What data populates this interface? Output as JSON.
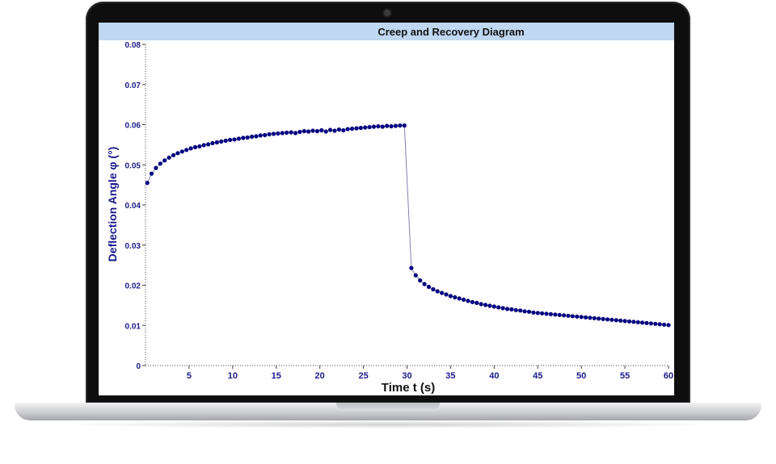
{
  "chart_data": {
    "type": "scatter",
    "title": "Creep and Recovery Diagram",
    "xlabel": "Time t (s)",
    "ylabel": "Deflection Angle φ (°)",
    "xlim": [
      0,
      60
    ],
    "ylim": [
      0,
      0.08
    ],
    "x_ticks": [
      "5",
      "10",
      "15",
      "20",
      "25",
      "30",
      "35",
      "40",
      "45",
      "50",
      "55",
      "60"
    ],
    "y_ticks": [
      "0",
      "0.01",
      "0.02",
      "0.03",
      "0.04",
      "0.05",
      "0.06",
      "0.07",
      "0.08"
    ],
    "series": [
      {
        "color": "#000080",
        "x": [
          0.2,
          0.7,
          1.2,
          1.7,
          2.2,
          2.7,
          3.2,
          3.7,
          4.2,
          4.7,
          5.2,
          5.7,
          6.2,
          6.7,
          7.2,
          7.7,
          8.2,
          8.7,
          9.2,
          9.7,
          10.2,
          10.7,
          11.2,
          11.7,
          12.2,
          12.7,
          13.2,
          13.7,
          14.2,
          14.7,
          15.2,
          15.7,
          16.2,
          16.7,
          17.2,
          17.7,
          18.2,
          18.7,
          19.2,
          19.7,
          20.2,
          20.7,
          21.2,
          21.7,
          22.2,
          22.7,
          23.2,
          23.7,
          24.2,
          24.7,
          25.2,
          25.7,
          26.2,
          26.7,
          27.2,
          27.7,
          28.2,
          28.7,
          29.2,
          29.7,
          30.5,
          31.0,
          31.5,
          32.0,
          32.5,
          33.0,
          33.5,
          34.0,
          34.5,
          35.0,
          35.5,
          36.0,
          36.5,
          37.0,
          37.5,
          38.0,
          38.5,
          39.0,
          39.5,
          40.0,
          40.5,
          41.0,
          41.5,
          42.0,
          42.5,
          43.0,
          43.5,
          44.0,
          44.5,
          45.0,
          45.5,
          46.0,
          46.5,
          47.0,
          47.5,
          48.0,
          48.5,
          49.0,
          49.5,
          50.0,
          50.5,
          51.0,
          51.5,
          52.0,
          52.5,
          53.0,
          53.5,
          54.0,
          54.5,
          55.0,
          55.5,
          56.0,
          56.5,
          57.0,
          57.5,
          58.0,
          58.5,
          59.0,
          59.5,
          60.0
        ],
        "y": [
          0.0455,
          0.0478,
          0.0492,
          0.0503,
          0.0511,
          0.0518,
          0.0524,
          0.0529,
          0.0533,
          0.0537,
          0.0541,
          0.0544,
          0.0546,
          0.0549,
          0.0551,
          0.0554,
          0.0556,
          0.0558,
          0.056,
          0.0562,
          0.0563,
          0.0565,
          0.0567,
          0.0568,
          0.057,
          0.0571,
          0.0573,
          0.0574,
          0.0576,
          0.0577,
          0.0578,
          0.0579,
          0.058,
          0.0581,
          0.0579,
          0.0582,
          0.0584,
          0.0583,
          0.0585,
          0.0584,
          0.0586,
          0.0583,
          0.0587,
          0.0585,
          0.0588,
          0.0586,
          0.0589,
          0.059,
          0.0591,
          0.0592,
          0.0593,
          0.0594,
          0.0595,
          0.0596,
          0.0595,
          0.0597,
          0.0596,
          0.0597,
          0.0598,
          0.0598,
          0.0243,
          0.0225,
          0.0212,
          0.0203,
          0.0196,
          0.019,
          0.0185,
          0.0181,
          0.0177,
          0.0173,
          0.017,
          0.0167,
          0.0164,
          0.0161,
          0.0158,
          0.0156,
          0.0153,
          0.0151,
          0.0149,
          0.0147,
          0.0145,
          0.0143,
          0.0141,
          0.014,
          0.0138,
          0.0137,
          0.0135,
          0.0134,
          0.0132,
          0.0131,
          0.013,
          0.0129,
          0.0128,
          0.0127,
          0.0126,
          0.0125,
          0.0124,
          0.0123,
          0.0122,
          0.0121,
          0.012,
          0.0119,
          0.0118,
          0.0117,
          0.0116,
          0.0115,
          0.0114,
          0.0113,
          0.0112,
          0.0111,
          0.011,
          0.0109,
          0.0108,
          0.0107,
          0.0106,
          0.0105,
          0.0104,
          0.0103,
          0.0102,
          0.0101
        ]
      }
    ],
    "grid": false,
    "line_color": "#8080b0"
  }
}
